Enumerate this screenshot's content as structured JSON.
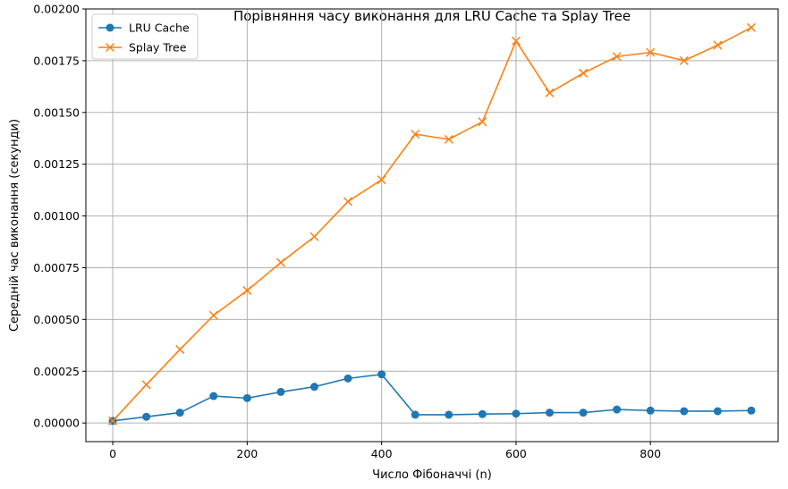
{
  "chart_data": {
    "type": "line",
    "title": "Порівняння часу виконання для LRU Cache та Splay Tree",
    "xlabel": "Число Фібоначчі (n)",
    "ylabel": "Середній час виконання (секунди)",
    "xlim": [
      -40,
      990
    ],
    "ylim": [
      -9e-05,
      0.002
    ],
    "x_ticks": [
      0,
      200,
      400,
      600,
      800
    ],
    "x_tick_labels": [
      "0",
      "200",
      "400",
      "600",
      "800"
    ],
    "y_ticks": [
      0,
      0.00025,
      0.0005,
      0.00075,
      0.001,
      0.00125,
      0.0015,
      0.00175,
      0.002
    ],
    "y_tick_labels": [
      "0.00000",
      "0.00025",
      "0.00050",
      "0.00075",
      "0.00100",
      "0.00125",
      "0.00150",
      "0.00175",
      "0.00200"
    ],
    "grid": true,
    "legend_position": "top-left",
    "x": [
      0,
      50,
      100,
      150,
      200,
      250,
      300,
      350,
      400,
      450,
      500,
      550,
      600,
      650,
      700,
      750,
      800,
      850,
      900,
      950
    ],
    "series": [
      {
        "name": "LRU Cache",
        "color": "#1f77b4",
        "marker": "circle",
        "values": [
          1e-05,
          3e-05,
          5e-05,
          0.00013,
          0.00012,
          0.00015,
          0.000175,
          0.000215,
          0.000235,
          4e-05,
          4e-05,
          4.3e-05,
          4.5e-05,
          5e-05,
          5e-05,
          6.5e-05,
          6e-05,
          5.7e-05,
          5.7e-05,
          6e-05
        ]
      },
      {
        "name": "Splay Tree",
        "color": "#ff7f0e",
        "marker": "x",
        "values": [
          1e-05,
          0.000185,
          0.000355,
          0.00052,
          0.00064,
          0.000775,
          0.0009,
          0.00107,
          0.001175,
          0.001395,
          0.00137,
          0.001455,
          0.001845,
          0.001595,
          0.00169,
          0.00177,
          0.00179,
          0.00175,
          0.001825,
          0.00191
        ]
      }
    ]
  }
}
